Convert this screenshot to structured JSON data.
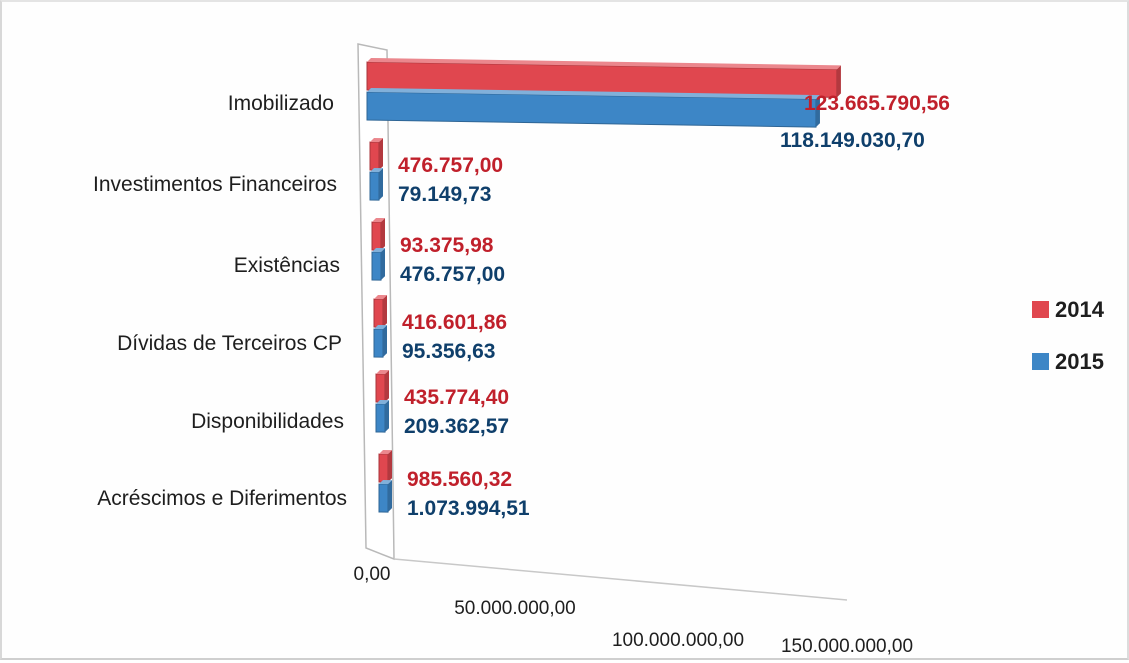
{
  "chart_data": {
    "type": "bar",
    "orientation": "horizontal",
    "style": "3d",
    "categories": [
      "Imobilizado",
      "Investimentos Financeiros",
      "Existências",
      "Dívidas de Terceiros CP",
      "Disponibilidades",
      "Acréscimos e Diferimentos"
    ],
    "series": [
      {
        "name": "2014",
        "color": "#e0474f",
        "values": [
          123665790.56,
          476757.0,
          93375.98,
          416601.86,
          435774.4,
          985560.32
        ],
        "value_labels": [
          "123.665.790,56",
          "476.757,00",
          "93.375,98",
          "416.601,86",
          "435.774,40",
          "985.560,32"
        ],
        "label_color": "#c0202b"
      },
      {
        "name": "2015",
        "color": "#3d86c6",
        "values": [
          118149030.7,
          79149.73,
          476757.0,
          95356.63,
          209362.57,
          1073994.51
        ],
        "value_labels": [
          "118.149.030,70",
          "79.149,73",
          "476.757,00",
          "95.356,63",
          "209.362,57",
          "1.073.994,51"
        ],
        "label_color": "#0f3f6b"
      }
    ],
    "x_ticks": [
      "0,00",
      "50.000.000,00",
      "100.000.000,00",
      "150.000.000,00"
    ],
    "xlim": [
      0,
      150000000
    ],
    "legend": {
      "position": "right",
      "entries": [
        "2014",
        "2015"
      ]
    },
    "title": "",
    "xlabel": "",
    "ylabel": "",
    "grid": false
  }
}
